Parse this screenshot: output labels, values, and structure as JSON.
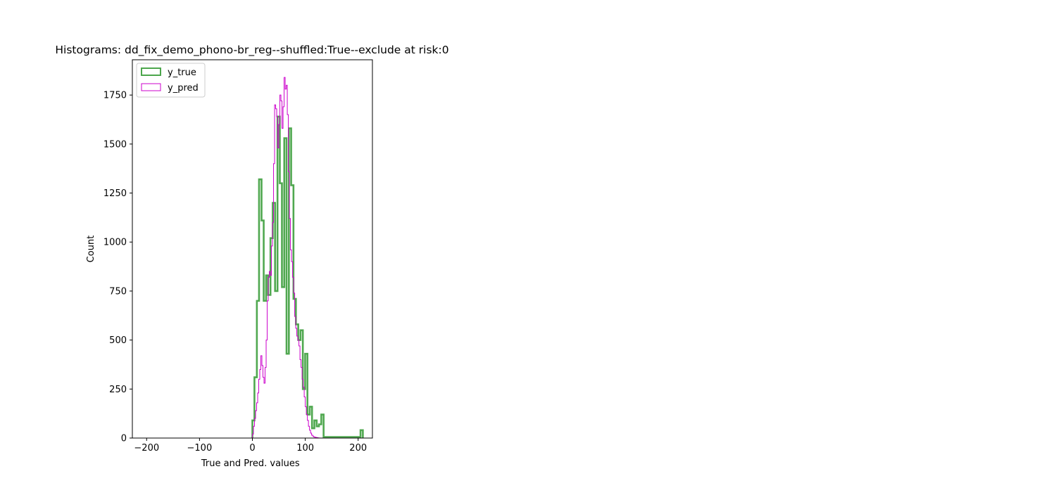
{
  "chart_data": {
    "type": "histogram",
    "title": "Histograms: dd_fix_demo_phono-br_reg--shuffled:True--exclude at risk:0",
    "xlabel": "True and Pred. values",
    "ylabel": "Count",
    "xlim": [
      -227,
      227
    ],
    "ylim": [
      0,
      1930
    ],
    "xticks": [
      -200,
      -100,
      0,
      100,
      200
    ],
    "xtick_labels": [
      "−200",
      "−100",
      "0",
      "100",
      "200"
    ],
    "yticks": [
      0,
      250,
      500,
      750,
      1000,
      1250,
      1500,
      1750
    ],
    "ytick_labels": [
      "0",
      "250",
      "500",
      "750",
      "1000",
      "1250",
      "1500",
      "1750"
    ],
    "grid": false,
    "legend_position": "upper-left",
    "series": [
      {
        "name": "y_true",
        "color": "#4ca64c",
        "style": "step-thick",
        "edges": [
          0,
          3.9,
          8.5,
          12.6,
          17.3,
          21.4,
          25.9,
          29.6,
          34.2,
          38.5,
          42.9,
          47.5,
          51.9,
          55.9,
          60.3,
          64.6,
          69.0,
          73.3,
          77.7,
          82.3,
          86.7,
          91.0,
          95.4,
          99.8,
          104.1,
          108.5,
          112.8,
          117.2,
          121.6,
          125.9,
          130.3,
          134.7,
          139.0,
          143.4,
          147.8,
          152.1,
          156.5,
          160.8,
          165.2,
          169.6,
          173.9,
          178.3,
          182.7,
          187.0,
          191.4,
          195.8,
          200.1,
          204.5,
          208.9
        ],
        "counts": [
          90,
          310,
          700,
          1320,
          1110,
          700,
          830,
          730,
          1020,
          1200,
          750,
          1640,
          1300,
          770,
          1530,
          430,
          1580,
          1290,
          710,
          580,
          500,
          550,
          250,
          430,
          120,
          160,
          50,
          90,
          60,
          70,
          120,
          5,
          5,
          5,
          5,
          5,
          5,
          5,
          5,
          5,
          5,
          5,
          5,
          5,
          5,
          5,
          5,
          40
        ]
      },
      {
        "name": "y_pred",
        "color": "#cc00cc",
        "style": "step-thin",
        "edges": [
          0,
          2.0,
          4.0,
          6.0,
          8.0,
          10.0,
          12.0,
          14.0,
          16.0,
          18.0,
          20.0,
          22.0,
          24.0,
          26.0,
          28.0,
          30.0,
          32.0,
          34.0,
          36.0,
          38.0,
          40.0,
          42.0,
          44.0,
          46.0,
          48.0,
          50.0,
          52.0,
          54.0,
          56.0,
          58.0,
          60.0,
          62.0,
          64.0,
          66.0,
          68.0,
          70.0,
          72.0,
          74.0,
          76.0,
          78.0,
          80.0,
          82.0,
          84.0,
          86.0,
          88.0,
          90.0,
          92.0,
          94.0,
          96.0,
          98.0,
          100.0,
          102.0,
          104.0,
          106.0,
          108.0,
          110.0,
          112.0,
          114.0,
          116.0,
          118.0,
          120.0,
          122.0,
          124.0,
          126.0,
          128.0
        ],
        "counts": [
          20,
          60,
          100,
          140,
          180,
          230,
          300,
          350,
          420,
          370,
          310,
          280,
          360,
          500,
          700,
          820,
          850,
          830,
          980,
          1100,
          1400,
          1700,
          1680,
          1640,
          1480,
          1600,
          1750,
          1720,
          1580,
          1690,
          1840,
          1780,
          1800,
          1650,
          1360,
          1120,
          960,
          900,
          820,
          740,
          620,
          560,
          520,
          500,
          470,
          400,
          360,
          300,
          260,
          210,
          160,
          120,
          90,
          60,
          40,
          25,
          15,
          10,
          6,
          4,
          3,
          2,
          1,
          0
        ]
      }
    ]
  }
}
